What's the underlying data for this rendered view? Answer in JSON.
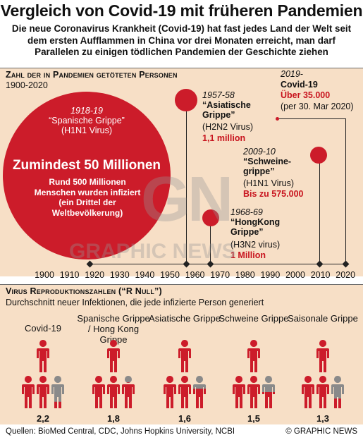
{
  "header": {
    "title": "Vergleich von Covid-19 mit früheren Pandemien",
    "subtitle": "Die neue Coronavirus Krankheit (Covid-19) hat fast jedes Land der Welt seit dem ersten Aufflammen in China vor drei Monaten erreicht, man darf Parallelen zu einigen tödlichen Pandemien der Geschichte ziehen"
  },
  "deaths_section": {
    "heading": "Zahl der in Pandemien getöteten Personen",
    "period": "1900-2020",
    "axis_ticks": [
      "1900",
      "1910",
      "1920",
      "1930",
      "1940",
      "1950",
      "1960",
      "1970",
      "1980",
      "1990",
      "2000",
      "2010",
      "2020"
    ],
    "spanish": {
      "years": "1918-19",
      "name": "“Spanische Grippe”",
      "virus": "(H1N1 Virus)",
      "deaths": "Zumindest 50 Millionen",
      "note": "Rund 500 Millionen Menschen wurden infiziert (ein Drittel der Weltbevölkerung)"
    },
    "asian": {
      "years": "1957-58",
      "name": "“Asiatische Grippe”",
      "virus": "(H2N2 Virus)",
      "deaths": "1,1 million"
    },
    "hongkong": {
      "years": "1968-69",
      "name": "“HongKong Grippe”",
      "virus": "(H3N2 virus)",
      "deaths": "1 Million"
    },
    "swine": {
      "years": "2009-10",
      "name": "“Schweine-grippe”",
      "virus": "(H1N1 Virus)",
      "deaths": "Bis zu 575.000"
    },
    "covid": {
      "years": "2019-",
      "name": "Covid-19",
      "deaths": "Über 35.000",
      "note": "(per 30. Mar 2020)"
    }
  },
  "r0_section": {
    "heading": "Virus Reproduktionszahlen (“R Null”)",
    "sub": "Durchschnitt neuer Infektionen, die jede infizierte Person generiert",
    "columns": [
      {
        "label": "Covid-19",
        "value": "2,2"
      },
      {
        "label": "Spanische Grippe / Hong Kong Grippe",
        "value": "1,8"
      },
      {
        "label": "Asiatische Grippe",
        "value": "1,6"
      },
      {
        "label": "Schweine Grippe",
        "value": "1,5"
      },
      {
        "label": "Saisonale Grippe",
        "value": "1,3"
      }
    ]
  },
  "footer": {
    "sources": "Quellen: BioMed Central, CDC, Johns Hopkins University, NCBI",
    "credit": "© GRAPHIC NEWS"
  },
  "watermark": "GRAPHIC NEWS",
  "colors": {
    "red": "#cc1c2a",
    "panel": "#f7dfc6",
    "grey": "#8a8a8a"
  }
}
